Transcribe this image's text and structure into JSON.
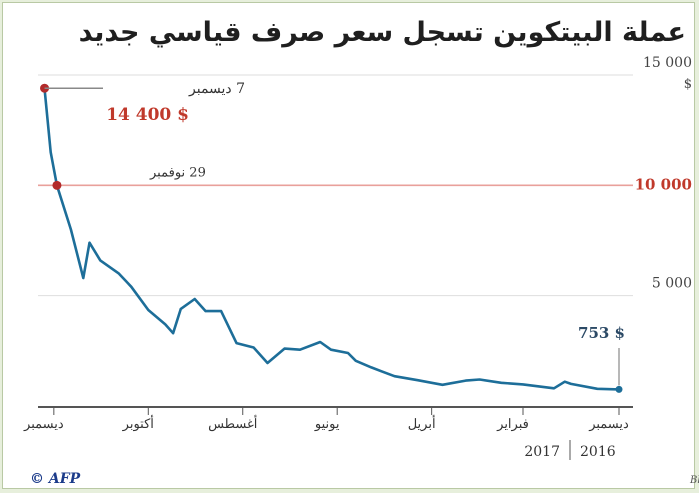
{
  "title": "عملة البيتكوين تسجل سعر صرف قياسي جديد",
  "y_ticks": [
    {
      "value": 15000,
      "label": "15 000"
    },
    {
      "value": 10000,
      "label": "10 000"
    },
    {
      "value": 5000,
      "label": "5 000"
    }
  ],
  "y_unit": "$",
  "x_ticks": [
    {
      "label": "ديسمبر",
      "date": "2016-12"
    },
    {
      "label": "فبراير",
      "date": "2017-02"
    },
    {
      "label": "أبريل",
      "date": "2017-04"
    },
    {
      "label": "يونيو",
      "date": "2017-06"
    },
    {
      "label": "أغسطس",
      "date": "2017-08"
    },
    {
      "label": "أكتوبر",
      "date": "2017-10"
    },
    {
      "label": "ديسمبر",
      "date": "2017-12"
    }
  ],
  "years": {
    "left": "2017",
    "right": "2016"
  },
  "threshold_label": "10 000",
  "annotations": {
    "peak_date": "7 ديسمبر",
    "peak_value": "14 400 $",
    "cross_date": "29 نوفمبر",
    "start_value": "753 $"
  },
  "source": "المصدر: Bloomberg/CoinDesk.com",
  "logo": "© AFP",
  "colors": {
    "line": "#1d6e99",
    "marker": "#b22a2a",
    "threshold": "#e9a09b",
    "highlight_text": "#c0392b",
    "axis": "#555555",
    "grid": "#dedede"
  },
  "chart_data": {
    "type": "line",
    "title": "عملة البيتكوين تسجل سعر صرف قياسي جديد",
    "xlabel": "",
    "ylabel": "$",
    "x_axis_reversed": true,
    "ylim": [
      0,
      15000
    ],
    "xlim": [
      "2016-12-01",
      "2017-12-08"
    ],
    "threshold": 10000,
    "series": [
      {
        "x": [
          "2016-12-01",
          "2016-12-15",
          "2017-01-01",
          "2017-01-05",
          "2017-01-12",
          "2017-02-01",
          "2017-02-15",
          "2017-03-01",
          "2017-03-10",
          "2017-03-25",
          "2017-04-10",
          "2017-04-25",
          "2017-05-10",
          "2017-05-20",
          "2017-05-25",
          "2017-06-05",
          "2017-06-12",
          "2017-06-25",
          "2017-07-05",
          "2017-07-16",
          "2017-07-25",
          "2017-08-05",
          "2017-08-15",
          "2017-08-25",
          "2017-09-01",
          "2017-09-10",
          "2017-09-15",
          "2017-09-20",
          "2017-10-01",
          "2017-10-12",
          "2017-10-20",
          "2017-11-01",
          "2017-11-08",
          "2017-11-12",
          "2017-11-20",
          "2017-11-29",
          "2017-12-03",
          "2017-12-07"
        ],
        "y": [
          753,
          780,
          1000,
          1100,
          800,
          980,
          1050,
          1200,
          1150,
          960,
          1170,
          1350,
          1750,
          2050,
          2400,
          2550,
          2900,
          2550,
          2600,
          1950,
          2650,
          2850,
          4300,
          4300,
          4850,
          4400,
          3300,
          3700,
          4350,
          5400,
          6000,
          6600,
          7400,
          5800,
          8000,
          10000,
          11500,
          14400
        ]
      }
    ]
  }
}
